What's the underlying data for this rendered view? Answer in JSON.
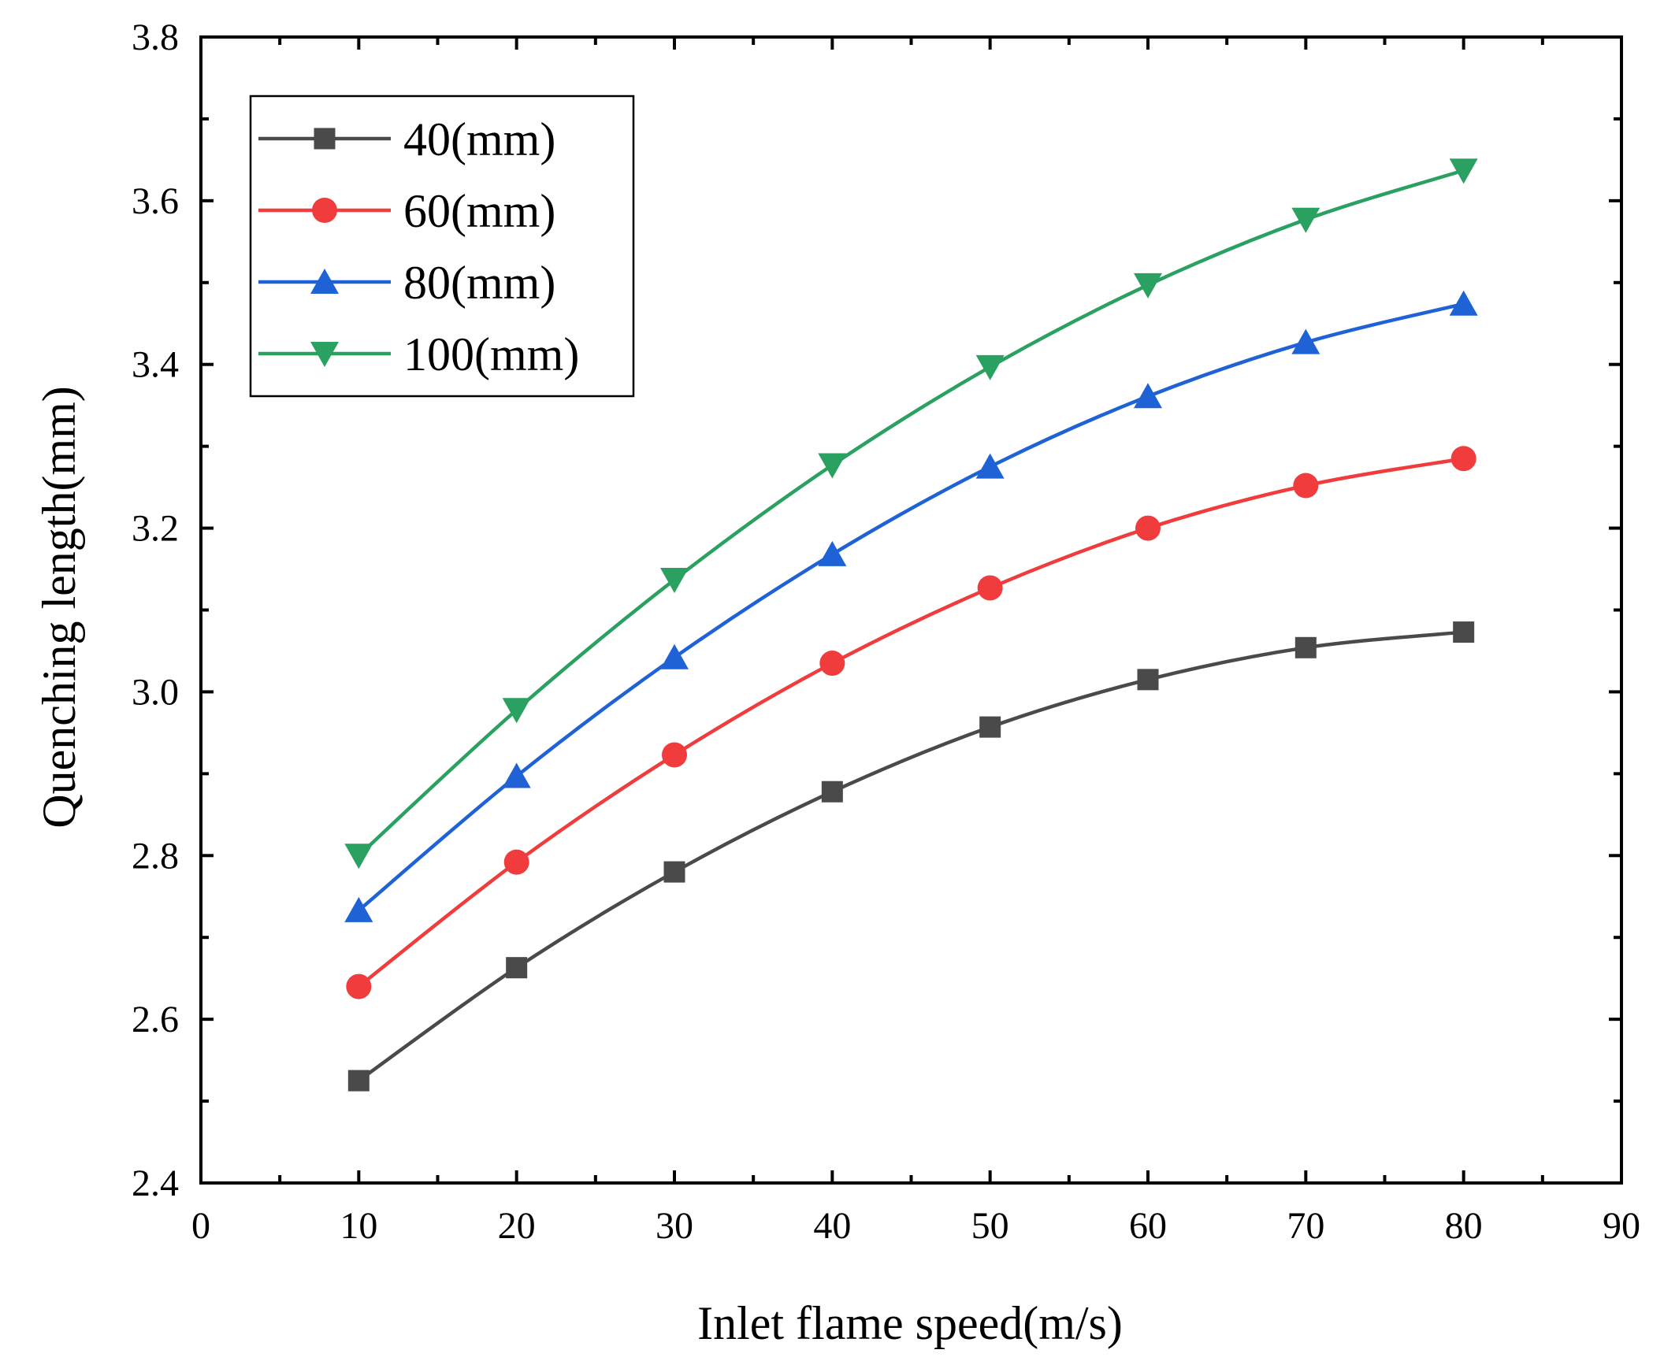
{
  "chart_data": {
    "type": "line",
    "title": "",
    "xlabel": "Inlet flame speed(m/s)",
    "ylabel": "Quenching length(mm)",
    "xlim": [
      0,
      90
    ],
    "ylim": [
      2.4,
      3.8
    ],
    "x_ticks": [
      0,
      10,
      20,
      30,
      40,
      50,
      60,
      70,
      80,
      90
    ],
    "x_tick_labels": [
      "0",
      "10",
      "20",
      "30",
      "40",
      "50",
      "60",
      "70",
      "80",
      "90"
    ],
    "y_ticks": [
      2.4,
      2.6,
      2.8,
      3.0,
      3.2,
      3.4,
      3.6,
      3.8
    ],
    "y_tick_labels": [
      "2.4",
      "2.6",
      "2.8",
      "3.0",
      "3.2",
      "3.4",
      "3.6",
      "3.8"
    ],
    "grid": false,
    "legend_position": "top-left",
    "x": [
      10,
      20,
      30,
      40,
      50,
      60,
      70,
      80
    ],
    "series": [
      {
        "name": "40(mm)",
        "color": "#4a4a4a",
        "marker": "square",
        "values": [
          2.525,
          2.663,
          2.78,
          2.878,
          2.957,
          3.015,
          3.054,
          3.073
        ]
      },
      {
        "name": "60(mm)",
        "color": "#f03c3c",
        "marker": "circle",
        "values": [
          2.64,
          2.792,
          2.923,
          3.035,
          3.127,
          3.2,
          3.252,
          3.285
        ]
      },
      {
        "name": "80(mm)",
        "color": "#1f62d6",
        "marker": "triangle-up",
        "values": [
          2.733,
          2.897,
          3.042,
          3.168,
          3.275,
          3.361,
          3.427,
          3.474
        ]
      },
      {
        "name": "100(mm)",
        "color": "#2aa160",
        "marker": "triangle-down",
        "values": [
          2.8,
          2.978,
          3.137,
          3.277,
          3.397,
          3.497,
          3.577,
          3.637
        ]
      }
    ]
  }
}
